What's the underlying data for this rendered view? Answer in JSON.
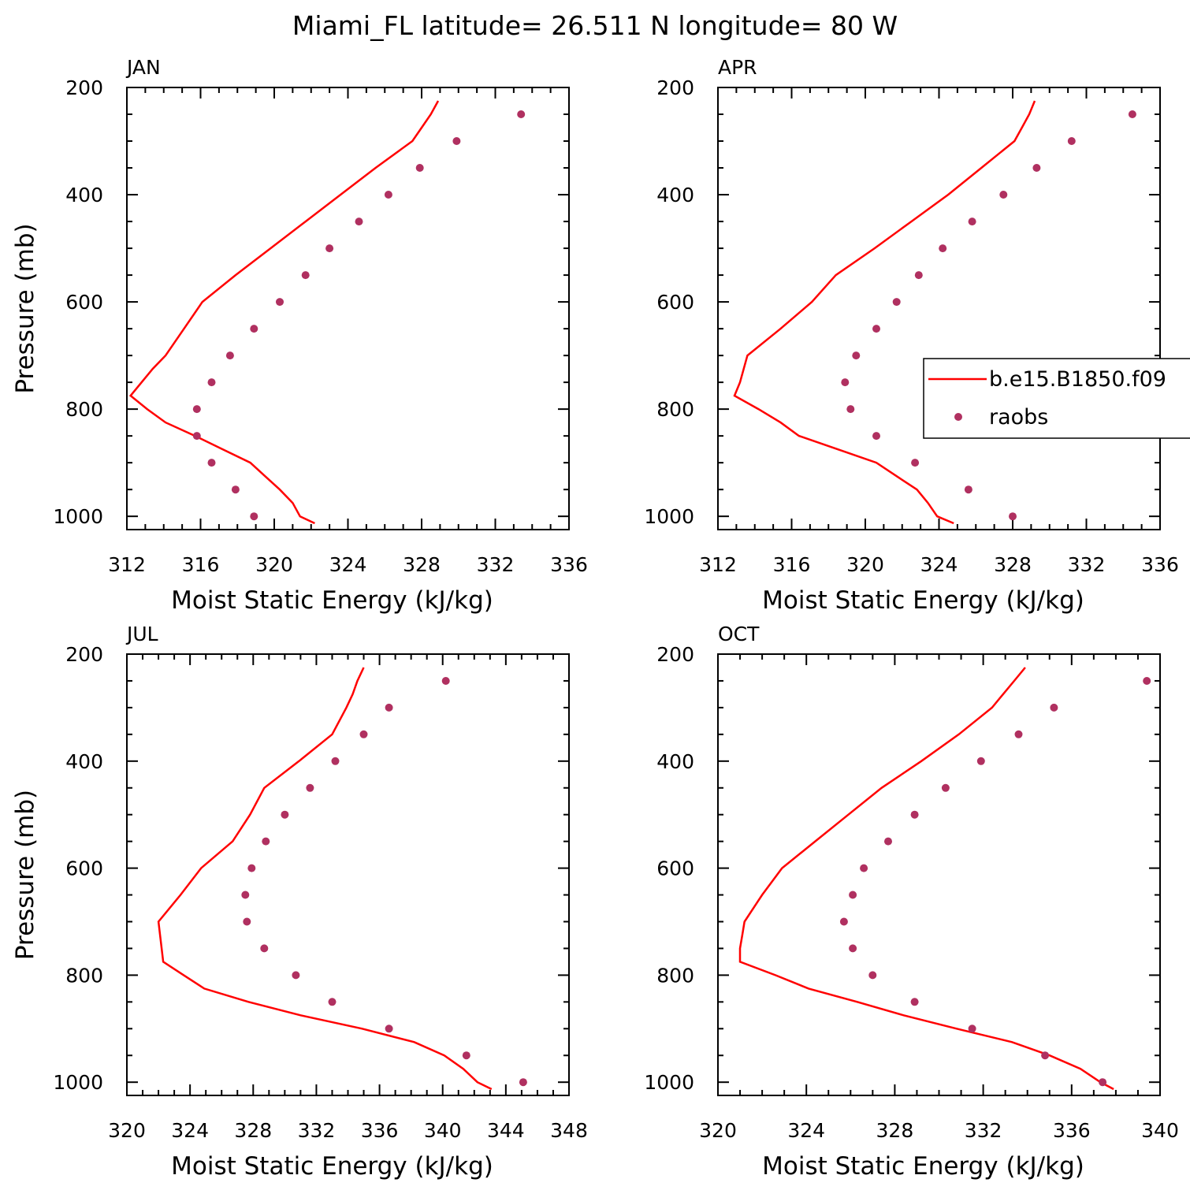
{
  "title": "Miami_FL  latitude= 26.511 N longitude= 80 W",
  "colors": {
    "model": "#ff0000",
    "obs": "#b03060",
    "frame": "#000000"
  },
  "legend": {
    "model_label": "b.e15.B1850.f09",
    "obs_label": "raobs"
  },
  "chart_data": [
    {
      "type": "line",
      "panel": "JAN",
      "xlabel": "Moist Static Energy (kJ/kg)",
      "ylabel": "Pressure (mb)",
      "xlim": [
        312,
        336
      ],
      "xticks": [
        312,
        316,
        320,
        324,
        328,
        332,
        336
      ],
      "ylim": [
        1000,
        200
      ],
      "yticks": [
        200,
        400,
        600,
        800,
        1000
      ],
      "model": {
        "pressure": [
          1013,
          1000,
          975,
          950,
          925,
          900,
          875,
          850,
          825,
          800,
          775,
          750,
          725,
          700,
          650,
          600,
          550,
          500,
          450,
          400,
          350,
          300,
          275,
          250,
          225
        ],
        "mse": [
          322.2,
          321.4,
          321.0,
          320.3,
          319.5,
          318.7,
          317.2,
          315.7,
          314.1,
          313.1,
          312.2,
          312.8,
          313.4,
          314.1,
          315.1,
          316.1,
          317.9,
          319.8,
          321.7,
          323.6,
          325.5,
          327.5,
          328.0,
          328.5,
          328.9
        ]
      },
      "obs": {
        "pressure": [
          1000,
          950,
          900,
          850,
          800,
          750,
          700,
          650,
          600,
          550,
          500,
          450,
          400,
          350,
          300,
          250
        ],
        "mse": [
          318.9,
          317.9,
          316.6,
          315.8,
          315.8,
          316.6,
          317.6,
          318.9,
          320.3,
          321.7,
          323.0,
          324.6,
          326.2,
          327.9,
          329.9,
          333.4
        ]
      }
    },
    {
      "type": "line",
      "panel": "APR",
      "xlabel": "Moist Static Energy (kJ/kg)",
      "ylabel": "",
      "xlim": [
        312,
        336
      ],
      "xticks": [
        312,
        316,
        320,
        324,
        328,
        332,
        336
      ],
      "ylim": [
        1000,
        200
      ],
      "yticks": [
        200,
        400,
        600,
        800,
        1000
      ],
      "model": {
        "pressure": [
          1013,
          1000,
          975,
          950,
          925,
          900,
          875,
          850,
          825,
          800,
          775,
          750,
          725,
          700,
          650,
          600,
          550,
          500,
          450,
          400,
          350,
          300,
          275,
          250,
          225
        ],
        "mse": [
          324.8,
          323.9,
          323.4,
          322.8,
          321.7,
          320.6,
          318.5,
          316.4,
          315.4,
          314.2,
          312.9,
          313.2,
          313.4,
          313.6,
          315.4,
          317.1,
          318.4,
          320.5,
          322.5,
          324.5,
          326.3,
          328.1,
          328.5,
          328.9,
          329.2
        ]
      },
      "obs": {
        "pressure": [
          1000,
          950,
          900,
          850,
          800,
          750,
          700,
          650,
          600,
          550,
          500,
          450,
          400,
          350,
          300,
          250
        ],
        "mse": [
          328.0,
          325.6,
          322.7,
          320.6,
          319.2,
          318.9,
          319.5,
          320.6,
          321.7,
          322.9,
          324.2,
          325.8,
          327.5,
          329.3,
          331.2,
          334.5
        ]
      }
    },
    {
      "type": "line",
      "panel": "JUL",
      "xlabel": "Moist Static Energy (kJ/kg)",
      "ylabel": "Pressure (mb)",
      "xlim": [
        320,
        348
      ],
      "xticks": [
        320,
        324,
        328,
        332,
        336,
        340,
        344,
        348
      ],
      "ylim": [
        1000,
        200
      ],
      "yticks": [
        200,
        400,
        600,
        800,
        1000
      ],
      "model": {
        "pressure": [
          1013,
          1000,
          975,
          950,
          925,
          900,
          875,
          850,
          825,
          800,
          775,
          750,
          725,
          700,
          650,
          600,
          550,
          500,
          450,
          400,
          350,
          300,
          275,
          250,
          225
        ],
        "mse": [
          343.1,
          342.2,
          341.3,
          340.1,
          338.2,
          334.9,
          331.0,
          327.7,
          324.9,
          323.6,
          322.3,
          322.2,
          322.1,
          322.0,
          323.4,
          324.7,
          326.7,
          327.8,
          328.7,
          330.9,
          333.0,
          333.9,
          334.3,
          334.6,
          335.0
        ]
      },
      "obs": {
        "pressure": [
          1000,
          950,
          900,
          850,
          800,
          750,
          700,
          650,
          600,
          550,
          500,
          450,
          400,
          350,
          300,
          250
        ],
        "mse": [
          345.1,
          341.5,
          336.6,
          333.0,
          330.7,
          328.7,
          327.6,
          327.5,
          327.9,
          328.8,
          330.0,
          331.6,
          333.2,
          335.0,
          336.6,
          340.2
        ]
      }
    },
    {
      "type": "line",
      "panel": "OCT",
      "xlabel": "Moist Static Energy (kJ/kg)",
      "ylabel": "",
      "xlim": [
        320,
        340
      ],
      "xticks": [
        320,
        324,
        328,
        332,
        336,
        340
      ],
      "ylim": [
        1000,
        200
      ],
      "yticks": [
        200,
        400,
        600,
        800,
        1000
      ],
      "model": {
        "pressure": [
          1013,
          1000,
          975,
          950,
          925,
          900,
          875,
          850,
          825,
          800,
          775,
          750,
          725,
          700,
          650,
          600,
          550,
          500,
          450,
          400,
          350,
          300,
          275,
          250,
          225
        ],
        "mse": [
          337.9,
          337.3,
          336.4,
          335.0,
          333.3,
          330.8,
          328.4,
          326.3,
          324.1,
          322.6,
          321.0,
          321.0,
          321.1,
          321.2,
          322.0,
          322.9,
          324.4,
          325.9,
          327.4,
          329.2,
          330.9,
          332.4,
          332.9,
          333.4,
          333.9
        ]
      },
      "obs": {
        "pressure": [
          1000,
          950,
          900,
          850,
          800,
          750,
          700,
          650,
          600,
          550,
          500,
          450,
          400,
          350,
          300,
          250
        ],
        "mse": [
          337.4,
          334.8,
          331.5,
          328.9,
          327.0,
          326.1,
          325.7,
          326.1,
          326.6,
          327.7,
          328.9,
          330.3,
          331.9,
          333.6,
          335.2,
          339.4
        ]
      }
    }
  ]
}
